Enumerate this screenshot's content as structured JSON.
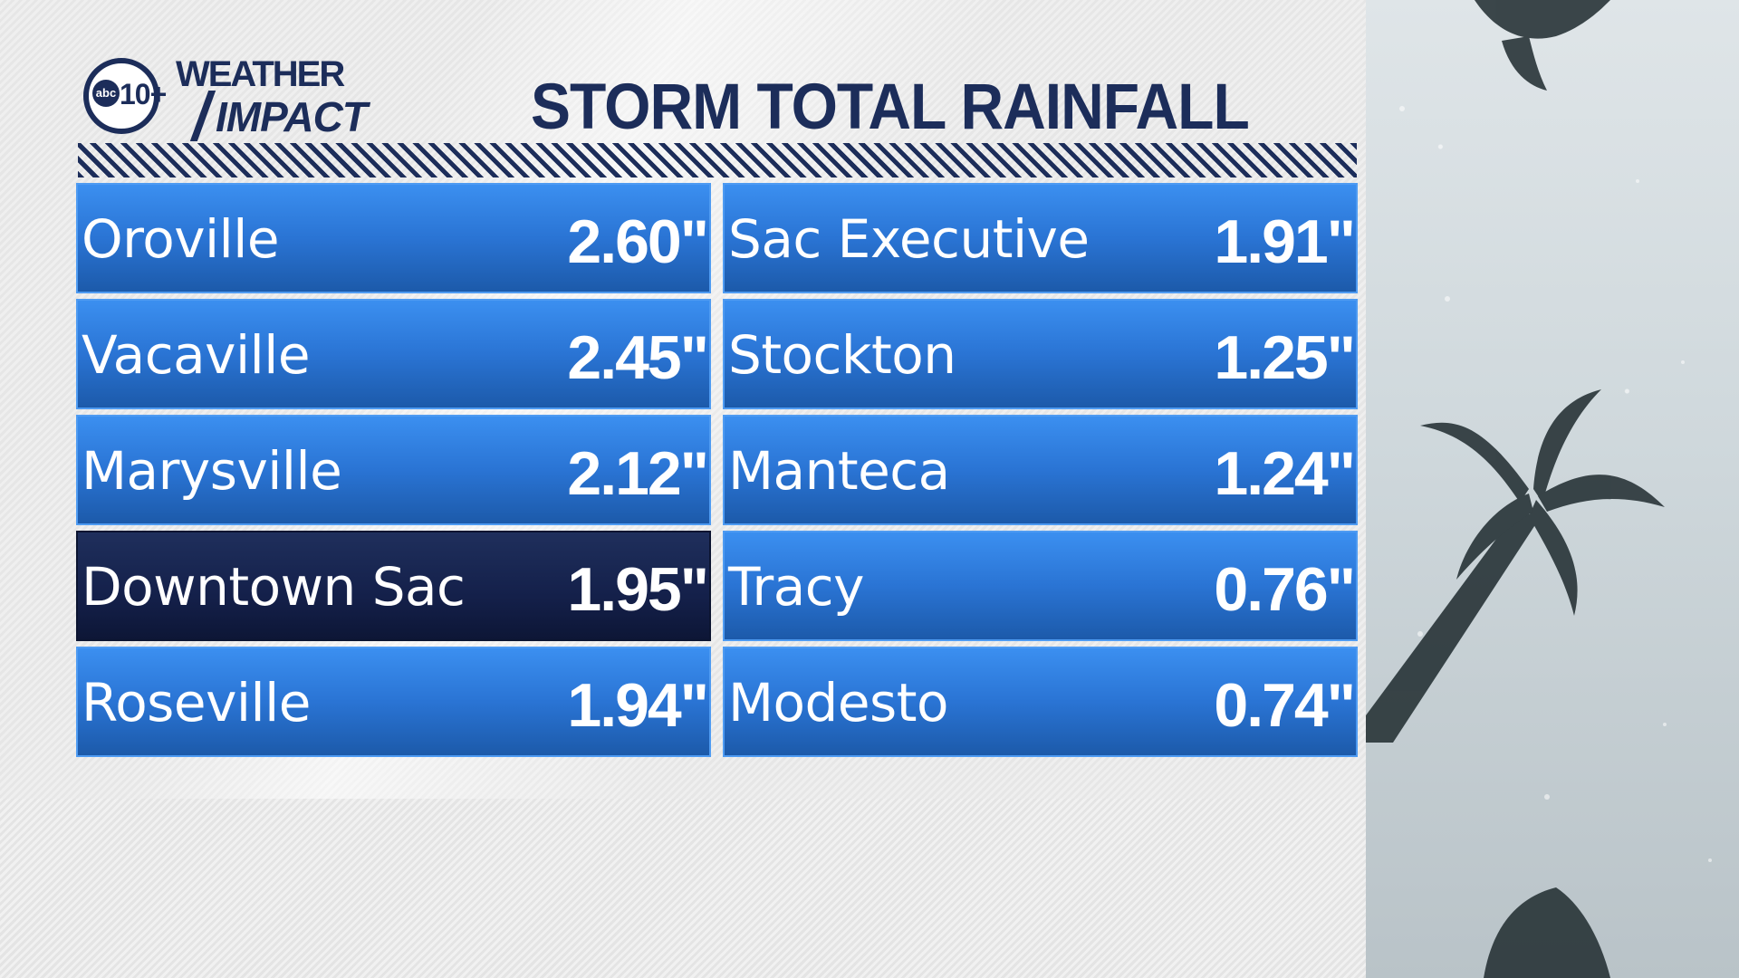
{
  "logo": {
    "abc": "abc",
    "number": "10+",
    "weather": "WEATHER",
    "impact": "IMPACT"
  },
  "title": "STORM TOTAL RAINFALL",
  "left_column": [
    {
      "city": "Oroville",
      "value": "2.60\""
    },
    {
      "city": "Vacaville",
      "value": "2.45\""
    },
    {
      "city": "Marysville",
      "value": "2.12\""
    },
    {
      "city": "Downtown Sac",
      "value": "1.95\"",
      "highlighted": true
    },
    {
      "city": "Roseville",
      "value": "1.94\""
    }
  ],
  "right_column": [
    {
      "city": "Sac Executive",
      "value": "1.91\""
    },
    {
      "city": "Stockton",
      "value": "1.25\""
    },
    {
      "city": "Manteca",
      "value": "1.24\""
    },
    {
      "city": "Tracy",
      "value": "0.76\""
    },
    {
      "city": "Modesto",
      "value": "0.74\""
    }
  ],
  "colors": {
    "navy": "#1c2d5a",
    "row_blue": "#2a74d4",
    "row_highlight": "#14204a"
  }
}
